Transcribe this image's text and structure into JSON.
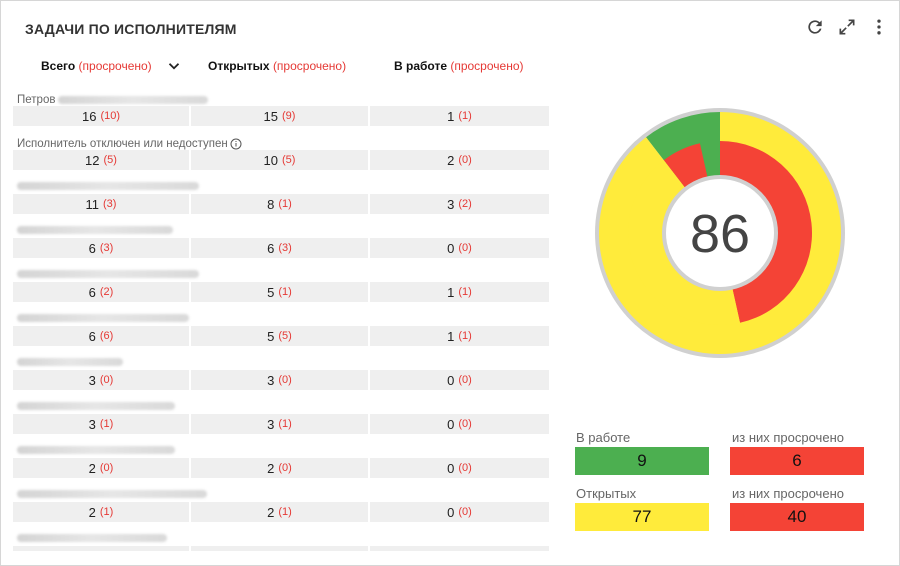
{
  "widget": {
    "title": "ЗАДАЧИ ПО ИСПОЛНИТЕЛЯМ",
    "tools": [
      "refresh-icon",
      "expand-icon",
      "more-vert-icon"
    ]
  },
  "columns": [
    {
      "label": "Всего",
      "overdue": "(просрочено)"
    },
    {
      "label": "Открытых",
      "overdue": "(просрочено)"
    },
    {
      "label": "В работе",
      "overdue": "(просрочено)"
    }
  ],
  "rows": [
    {
      "name": "Петров",
      "total": "16",
      "total_od": "(10)",
      "open": "15",
      "open_od": "(9)",
      "work": "1",
      "work_od": "(1)"
    },
    {
      "name": "Исполнитель отключен или недоступен",
      "total": "12",
      "total_od": "(5)",
      "open": "10",
      "open_od": "(5)",
      "work": "2",
      "work_od": "(0)"
    },
    {
      "name": "",
      "total": "11",
      "total_od": "(3)",
      "open": "8",
      "open_od": "(1)",
      "work": "3",
      "work_od": "(2)"
    },
    {
      "name": "",
      "total": "6",
      "total_od": "(3)",
      "open": "6",
      "open_od": "(3)",
      "work": "0",
      "work_od": "(0)"
    },
    {
      "name": "",
      "total": "6",
      "total_od": "(2)",
      "open": "5",
      "open_od": "(1)",
      "work": "1",
      "work_od": "(1)"
    },
    {
      "name": "",
      "total": "6",
      "total_od": "(6)",
      "open": "5",
      "open_od": "(5)",
      "work": "1",
      "work_od": "(1)"
    },
    {
      "name": "",
      "total": "3",
      "total_od": "(0)",
      "open": "3",
      "open_od": "(0)",
      "work": "0",
      "work_od": "(0)"
    },
    {
      "name": "",
      "total": "3",
      "total_od": "(1)",
      "open": "3",
      "open_od": "(1)",
      "work": "0",
      "work_od": "(0)"
    },
    {
      "name": "",
      "total": "2",
      "total_od": "(0)",
      "open": "2",
      "open_od": "(0)",
      "work": "0",
      "work_od": "(0)"
    },
    {
      "name": "",
      "total": "2",
      "total_od": "(1)",
      "open": "2",
      "open_od": "(1)",
      "work": "0",
      "work_od": "(0)"
    },
    {
      "name": "",
      "total": "",
      "total_od": "",
      "open": "",
      "open_od": "",
      "work": "",
      "work_od": ""
    }
  ],
  "summary": {
    "total": "86",
    "in_work_label": "В работе",
    "in_work": "9",
    "in_work_overdue_label": "из них просрочено",
    "in_work_overdue": "6",
    "open_label": "Открытых",
    "open": "77",
    "open_overdue_label": "из них просрочено",
    "open_overdue": "40"
  },
  "colors": {
    "green": "#4caf50",
    "yellow": "#ffeb3b",
    "red": "#f44336",
    "overdue_text": "#e53935",
    "ring": "#d0d0d0"
  },
  "chart_data": {
    "type": "pie",
    "total_label": "86",
    "outer_ring": [
      {
        "label": "В работе",
        "value": 9,
        "color": "#4caf50"
      },
      {
        "label": "Открытых",
        "value": 77,
        "color": "#ffeb3b"
      }
    ],
    "inner_ring": [
      {
        "label": "из них просрочено",
        "value": 6,
        "group": "В работе",
        "color": "#f44336"
      },
      {
        "label": "",
        "value": 3,
        "group": "В работе",
        "color": "#4caf50"
      },
      {
        "label": "из них просрочено",
        "value": 40,
        "group": "Открытых",
        "color": "#f44336"
      },
      {
        "label": "",
        "value": 37,
        "group": "Открытых",
        "color": "#ffeb3b"
      }
    ]
  }
}
